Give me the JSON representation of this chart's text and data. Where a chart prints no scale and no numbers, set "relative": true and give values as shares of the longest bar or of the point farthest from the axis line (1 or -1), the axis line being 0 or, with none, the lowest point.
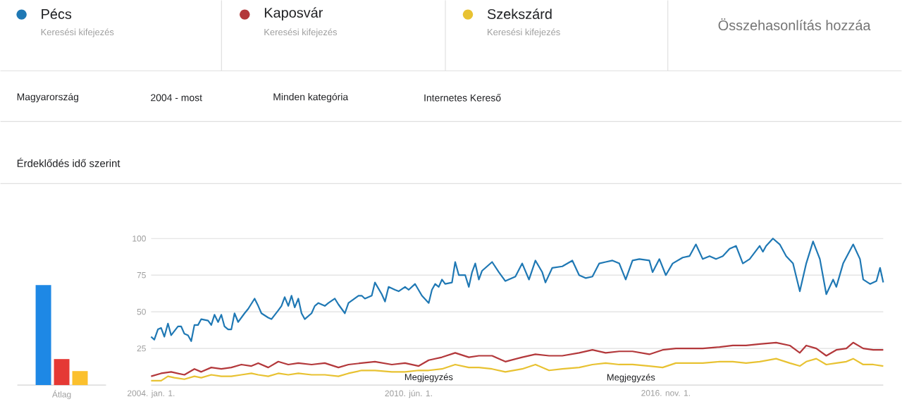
{
  "chart_data": [
    {
      "type": "bar",
      "relative": true,
      "categories": [
        "Átlag"
      ],
      "series": [
        {
          "color": "#1e88e5",
          "values": [
            1
          ]
        },
        {
          "color": "#e53935",
          "values": [
            0.26
          ]
        },
        {
          "color": "#fbc02d",
          "values": [
            0.14
          ]
        }
      ]
    },
    {
      "type": "line",
      "title": "Érdeklődés idő szerint",
      "legend": "top",
      "grid": "y",
      "xlim": [
        "2004-01",
        "2022-04"
      ],
      "xticks": [
        {
          "value": "2004-01-01",
          "label": "2004. jan. 1."
        },
        {
          "value": "2010-06-01",
          "label": "2010. jún. 1."
        },
        {
          "value": "2016-11-01",
          "label": "2016. nov. 1."
        }
      ],
      "ylim": [
        0,
        100
      ],
      "yticks": [
        25,
        50,
        75,
        100
      ],
      "annotations": [
        "Keresési kifejezés",
        "Keresési kifejezés",
        "Keresési kifejezés",
        "Összehasonlítás hozzáa",
        "Magyarország",
        "2004 - most",
        "Minden kategória",
        "Internetes Kereső",
        {
          "text": "Megjegyzés",
          "x": "2010-12",
          "y": 5
        },
        "Megjegyzés"
      ],
      "series": [
        {
          "name": "Pécs",
          "color": "#1f78b4",
          "x": [
            "2004-01",
            "2004-02",
            "2004-03",
            "2004-04",
            "2004-05",
            "2004-06",
            "2004-07",
            "2004-09",
            "2004-10",
            "2004-11",
            "2004-12",
            "2005-01",
            "2005-02",
            "2005-03",
            "2005-04",
            "2005-06",
            "2005-07",
            "2005-08",
            "2005-09",
            "2005-10",
            "2005-11",
            "2005-12",
            "2006-01",
            "2006-02",
            "2006-03",
            "2006-05",
            "2006-06",
            "2006-08",
            "2006-09",
            "2006-10",
            "2006-12",
            "2007-01",
            "2007-03",
            "2007-04",
            "2007-05",
            "2007-06",
            "2007-07",
            "2007-08",
            "2007-09",
            "2007-10",
            "2007-11",
            "2008-01",
            "2008-02",
            "2008-03",
            "2008-05",
            "2008-06",
            "2008-08",
            "2008-09",
            "2008-11",
            "2008-12",
            "2009-03",
            "2009-04",
            "2009-05",
            "2009-07",
            "2009-08",
            "2009-10",
            "2009-11",
            "2009-12",
            "2010-02",
            "2010-03",
            "2010-05",
            "2010-06",
            "2010-08",
            "2010-10",
            "2010-12",
            "2011-01",
            "2011-02",
            "2011-03",
            "2011-04",
            "2011-05",
            "2011-07",
            "2011-08",
            "2011-09",
            "2011-11",
            "2011-12",
            "2012-01",
            "2012-02",
            "2012-03",
            "2012-04",
            "2012-07",
            "2012-09",
            "2012-11",
            "2013-02",
            "2013-04",
            "2013-06",
            "2013-08",
            "2013-10",
            "2013-11",
            "2014-01",
            "2014-04",
            "2014-07",
            "2014-09",
            "2014-11",
            "2015-01",
            "2015-03",
            "2015-05",
            "2015-07",
            "2015-09",
            "2015-11",
            "2016-01",
            "2016-03",
            "2016-06",
            "2016-07",
            "2016-09",
            "2016-11",
            "2017-01",
            "2017-04",
            "2017-06",
            "2017-08",
            "2017-10",
            "2017-12",
            "2018-02",
            "2018-04",
            "2018-06",
            "2018-08",
            "2018-10",
            "2018-12",
            "2019-03",
            "2019-04",
            "2019-05",
            "2019-07",
            "2019-09",
            "2019-11",
            "2020-01",
            "2020-03",
            "2020-05",
            "2020-07",
            "2020-09",
            "2020-11",
            "2021-01",
            "2021-02",
            "2021-04",
            "2021-07",
            "2021-09",
            "2021-10",
            "2021-12",
            "2022-02",
            "2022-03",
            "2022-04"
          ],
          "values": [
            33,
            31,
            38,
            39,
            33,
            42,
            34,
            40,
            40,
            35,
            34,
            30,
            41,
            41,
            45,
            44,
            41,
            48,
            43,
            48,
            40,
            38,
            38,
            49,
            43,
            49,
            52,
            59,
            54,
            49,
            46,
            45,
            51,
            54,
            60,
            54,
            61,
            53,
            59,
            49,
            45,
            49,
            54,
            56,
            54,
            56,
            59,
            55,
            49,
            56,
            61,
            61,
            59,
            61,
            70,
            62,
            57,
            67,
            65,
            64,
            67,
            65,
            69,
            61,
            56,
            65,
            69,
            67,
            72,
            69,
            70,
            84,
            75,
            75,
            67,
            77,
            83,
            72,
            78,
            84,
            77,
            71,
            74,
            83,
            72,
            85,
            77,
            70,
            80,
            81,
            85,
            75,
            73,
            74,
            83,
            84,
            85,
            83,
            72,
            85,
            86,
            85,
            77,
            86,
            75,
            83,
            87,
            88,
            96,
            86,
            88,
            86,
            88,
            93,
            95,
            83,
            86,
            95,
            91,
            95,
            100,
            96,
            88,
            83,
            64,
            83,
            98,
            86,
            62,
            72,
            67,
            83,
            96,
            86,
            72,
            69,
            71,
            80,
            70
          ]
        },
        {
          "name": "Kaposvár",
          "color": "#b3383b",
          "x": [
            "2004-01",
            "2004-04",
            "2004-07",
            "2004-11",
            "2005-02",
            "2005-04",
            "2005-07",
            "2005-10",
            "2006-01",
            "2006-04",
            "2006-07",
            "2006-09",
            "2006-12",
            "2007-03",
            "2007-06",
            "2007-09",
            "2008-01",
            "2008-05",
            "2008-09",
            "2008-12",
            "2009-04",
            "2009-08",
            "2010-01",
            "2010-05",
            "2010-09",
            "2010-12",
            "2011-04",
            "2011-08",
            "2011-12",
            "2012-03",
            "2012-07",
            "2012-11",
            "2013-04",
            "2013-08",
            "2013-12",
            "2014-04",
            "2014-09",
            "2015-01",
            "2015-05",
            "2015-09",
            "2016-01",
            "2016-06",
            "2016-10",
            "2017-02",
            "2017-06",
            "2017-10",
            "2018-03",
            "2018-07",
            "2018-11",
            "2019-03",
            "2019-08",
            "2019-12",
            "2020-03",
            "2020-05",
            "2020-08",
            "2020-11",
            "2021-02",
            "2021-05",
            "2021-07",
            "2021-10",
            "2022-01",
            "2022-04"
          ],
          "values": [
            6,
            8,
            9,
            7,
            11,
            9,
            12,
            11,
            12,
            14,
            13,
            15,
            12,
            16,
            14,
            15,
            14,
            15,
            12,
            14,
            15,
            16,
            14,
            15,
            13,
            17,
            19,
            22,
            19,
            20,
            20,
            16,
            19,
            21,
            20,
            20,
            22,
            24,
            22,
            23,
            23,
            21,
            24,
            25,
            25,
            25,
            26,
            27,
            27,
            28,
            29,
            27,
            22,
            27,
            25,
            20,
            24,
            25,
            29,
            25,
            24,
            24
          ]
        },
        {
          "name": "Szekszárd",
          "color": "#e8c232",
          "x": [
            "2004-01",
            "2004-04",
            "2004-06",
            "2004-08",
            "2004-11",
            "2005-02",
            "2005-04",
            "2005-07",
            "2005-10",
            "2006-01",
            "2006-04",
            "2006-07",
            "2006-09",
            "2006-12",
            "2007-03",
            "2007-06",
            "2007-09",
            "2008-01",
            "2008-05",
            "2008-09",
            "2008-12",
            "2009-04",
            "2009-08",
            "2010-01",
            "2010-05",
            "2010-09",
            "2010-12",
            "2011-04",
            "2011-08",
            "2011-12",
            "2012-03",
            "2012-07",
            "2012-11",
            "2013-04",
            "2013-08",
            "2013-12",
            "2014-04",
            "2014-09",
            "2015-01",
            "2015-05",
            "2015-09",
            "2016-01",
            "2016-06",
            "2016-10",
            "2017-02",
            "2017-06",
            "2017-10",
            "2018-03",
            "2018-07",
            "2018-11",
            "2019-03",
            "2019-08",
            "2019-12",
            "2020-03",
            "2020-05",
            "2020-08",
            "2020-11",
            "2021-02",
            "2021-05",
            "2021-07",
            "2021-10",
            "2022-01",
            "2022-04"
          ],
          "values": [
            3,
            3,
            6,
            5,
            4,
            6,
            5,
            7,
            6,
            6,
            7,
            8,
            7,
            6,
            8,
            7,
            8,
            7,
            7,
            6,
            8,
            10,
            10,
            9,
            9,
            10,
            10,
            11,
            14,
            12,
            12,
            11,
            9,
            11,
            14,
            10,
            11,
            12,
            14,
            15,
            14,
            14,
            13,
            12,
            15,
            15,
            15,
            16,
            16,
            15,
            16,
            18,
            15,
            13,
            16,
            18,
            14,
            15,
            16,
            18,
            14,
            14,
            13
          ]
        }
      ]
    }
  ]
}
